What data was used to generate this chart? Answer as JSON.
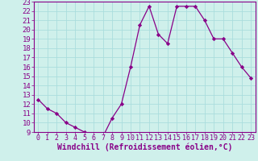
{
  "x": [
    0,
    1,
    2,
    3,
    4,
    5,
    6,
    7,
    8,
    9,
    10,
    11,
    12,
    13,
    14,
    15,
    16,
    17,
    18,
    19,
    20,
    21,
    22,
    23
  ],
  "y": [
    12.5,
    11.5,
    11.0,
    10.0,
    9.5,
    9.0,
    8.5,
    8.5,
    10.5,
    12.0,
    16.0,
    20.5,
    22.5,
    19.5,
    18.5,
    22.5,
    22.5,
    22.5,
    21.0,
    19.0,
    19.0,
    17.5,
    16.0,
    14.8
  ],
  "xlabel": "Windchill (Refroidissement éolien,°C)",
  "ylim": [
    9,
    23
  ],
  "xlim": [
    -0.5,
    23.5
  ],
  "yticks": [
    9,
    10,
    11,
    12,
    13,
    14,
    15,
    16,
    17,
    18,
    19,
    20,
    21,
    22,
    23
  ],
  "xticks": [
    0,
    1,
    2,
    3,
    4,
    5,
    6,
    7,
    8,
    9,
    10,
    11,
    12,
    13,
    14,
    15,
    16,
    17,
    18,
    19,
    20,
    21,
    22,
    23
  ],
  "line_color": "#880088",
  "marker": "D",
  "marker_size": 2.2,
  "background_color": "#cff0eb",
  "grid_color": "#aadddd",
  "label_color": "#880088",
  "tick_color": "#880088",
  "spine_color": "#880088",
  "xlabel_fontsize": 7.0,
  "ytick_fontsize": 6.5,
  "xtick_fontsize": 6.0
}
